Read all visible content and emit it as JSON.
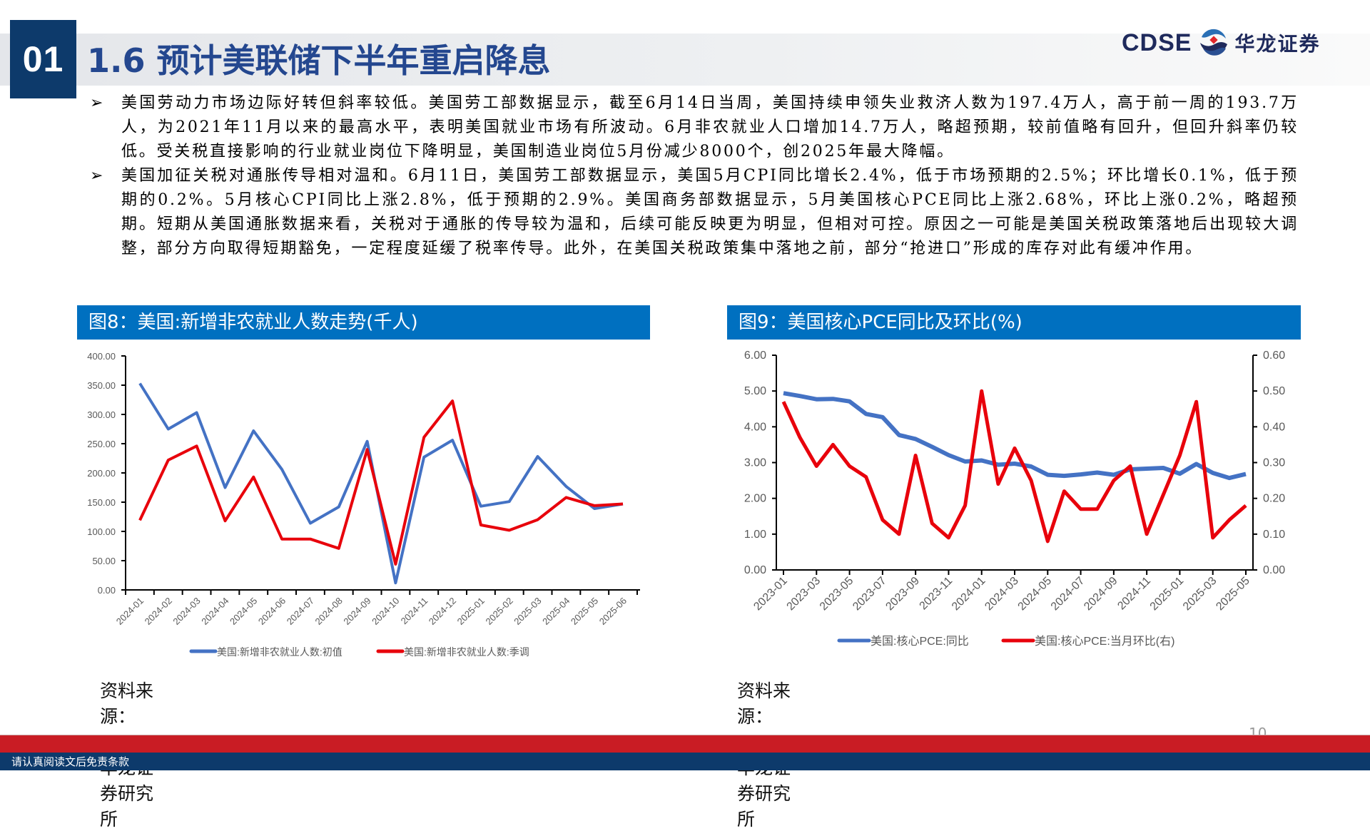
{
  "header": {
    "section_number": "01",
    "title": "1.6 预计美联储下半年重启降息",
    "logo_en": "CDSE",
    "logo_cn": "华龙证券",
    "logo_icon": "hualong-wave-emblem-icon"
  },
  "bullets": [
    {
      "icon": "arrowhead-bullet-icon",
      "text": "美国劳动力市场边际好转但斜率较低。美国劳工部数据显示，截至6月14日当周，美国持续申领失业救济人数为197.4万人，高于前一周的193.7万人，为2021年11月以来的最高水平，表明美国就业市场有所波动。6月非农就业人口增加14.7万人，略超预期，较前值略有回升，但回升斜率仍较低。受关税直接影响的行业就业岗位下降明显，美国制造业岗位5月份减少8000个，创2025年最大降幅。"
    },
    {
      "icon": "arrowhead-bullet-icon",
      "text": "美国加征关税对通胀传导相对温和。6月11日，美国劳工部数据显示，美国5月CPI同比增长2.4%，低于市场预期的2.5%；环比增长0.1%，低于预期的0.2%。5月核心CPI同比上涨2.8%，低于预期的2.9%。美国商务部数据显示，5月美国核心PCE同比上涨2.68%，环比上涨0.2%，略超预期。短期从美国通胀数据来看，关税对于通胀的传导较为温和，后续可能反映更为明显，但相对可控。原因之一可能是美国关税政策落地后出现较大调整，部分方向取得短期豁免，一定程度延缓了税率传导。此外，在美国关税政策集中落地之前，部分“抢进口”形成的库存对此有缓冲作用。"
    }
  ],
  "charts": {
    "fig8": {
      "title": "图8：美国:新增非农就业人数走势(千人)",
      "source": "资料来源：Wind，华龙证券研究所"
    },
    "fig9": {
      "title": "图9：美国核心PCE同比及环比(%)",
      "source": "资料来源：Wind，华龙证券研究所"
    }
  },
  "chart_data": [
    {
      "type": "line",
      "title": "图8：美国:新增非农就业人数走势(千人)",
      "xlabel": "",
      "ylabel": "千人",
      "ylim": [
        0,
        400
      ],
      "yticks": [
        "0.00",
        "50.00",
        "100.00",
        "150.00",
        "200.00",
        "250.00",
        "300.00",
        "350.00",
        "400.00"
      ],
      "grid": false,
      "legend_position": "bottom",
      "categories": [
        "2024-01",
        "2024-02",
        "2024-03",
        "2024-04",
        "2024-05",
        "2024-06",
        "2024-07",
        "2024-08",
        "2024-09",
        "2024-10",
        "2024-11",
        "2024-12",
        "2025-01",
        "2025-02",
        "2025-03",
        "2025-04",
        "2025-05",
        "2025-06"
      ],
      "series": [
        {
          "name": "美国:新增非农就业人数:初值",
          "color": "#4472c4",
          "values": [
            353,
            275,
            303,
            175,
            272,
            206,
            114,
            142,
            254,
            12,
            227,
            256,
            143,
            151,
            228,
            177,
            139,
            147
          ]
        },
        {
          "name": "美国:新增非农就业人数:季调",
          "color": "#e8000b",
          "values": [
            119,
            222,
            246,
            118,
            193,
            87,
            87,
            71,
            240,
            44,
            261,
            323,
            111,
            102,
            120,
            158,
            144,
            147
          ]
        }
      ]
    },
    {
      "type": "line",
      "title": "图9：美国核心PCE同比及环比(%)",
      "xlabel": "",
      "ylabel": "%",
      "ylim": [
        0,
        6
      ],
      "y2lim": [
        0,
        0.6
      ],
      "yticks": [
        "0.00",
        "1.00",
        "2.00",
        "3.00",
        "4.00",
        "5.00",
        "6.00"
      ],
      "y2ticks": [
        "0.00",
        "0.10",
        "0.20",
        "0.30",
        "0.40",
        "0.50",
        "0.60"
      ],
      "grid": false,
      "legend_position": "bottom",
      "x": [
        "2023-01",
        "2023-02",
        "2023-03",
        "2023-04",
        "2023-05",
        "2023-06",
        "2023-07",
        "2023-08",
        "2023-09",
        "2023-10",
        "2023-11",
        "2023-12",
        "2024-01",
        "2024-02",
        "2024-03",
        "2024-04",
        "2024-05",
        "2024-06",
        "2024-07",
        "2024-08",
        "2024-09",
        "2024-10",
        "2024-11",
        "2024-12",
        "2025-01",
        "2025-02",
        "2025-03",
        "2025-04",
        "2025-05"
      ],
      "tick_labels": [
        "2023-01",
        "2023-03",
        "2023-05",
        "2023-07",
        "2023-09",
        "2023-11",
        "2024-01",
        "2024-03",
        "2024-05",
        "2024-07",
        "2024-09",
        "2024-11",
        "2025-01",
        "2025-03",
        "2025-05"
      ],
      "series": [
        {
          "name": "美国:核心PCE:同比",
          "axis": "left",
          "color": "#4472c4",
          "values": [
            4.94,
            4.86,
            4.77,
            4.78,
            4.71,
            4.36,
            4.27,
            3.77,
            3.66,
            3.44,
            3.21,
            3.03,
            3.06,
            2.94,
            2.97,
            2.89,
            2.66,
            2.63,
            2.67,
            2.72,
            2.66,
            2.81,
            2.83,
            2.85,
            2.69,
            2.96,
            2.71,
            2.57,
            2.68
          ]
        },
        {
          "name": "美国:核心PCE:当月环比(右)",
          "axis": "right",
          "color": "#e8000b",
          "values": [
            0.47,
            0.37,
            0.29,
            0.35,
            0.29,
            0.26,
            0.14,
            0.1,
            0.32,
            0.13,
            0.09,
            0.18,
            0.5,
            0.24,
            0.34,
            0.25,
            0.08,
            0.22,
            0.17,
            0.17,
            0.25,
            0.29,
            0.1,
            0.21,
            0.32,
            0.47,
            0.09,
            0.14,
            0.18
          ]
        }
      ]
    }
  ],
  "footer": {
    "page_number": "10",
    "disclaimer": "请认真阅读文后免责条款",
    "brand_red": "#c91c24",
    "brand_navy": "#0d3a6b"
  }
}
